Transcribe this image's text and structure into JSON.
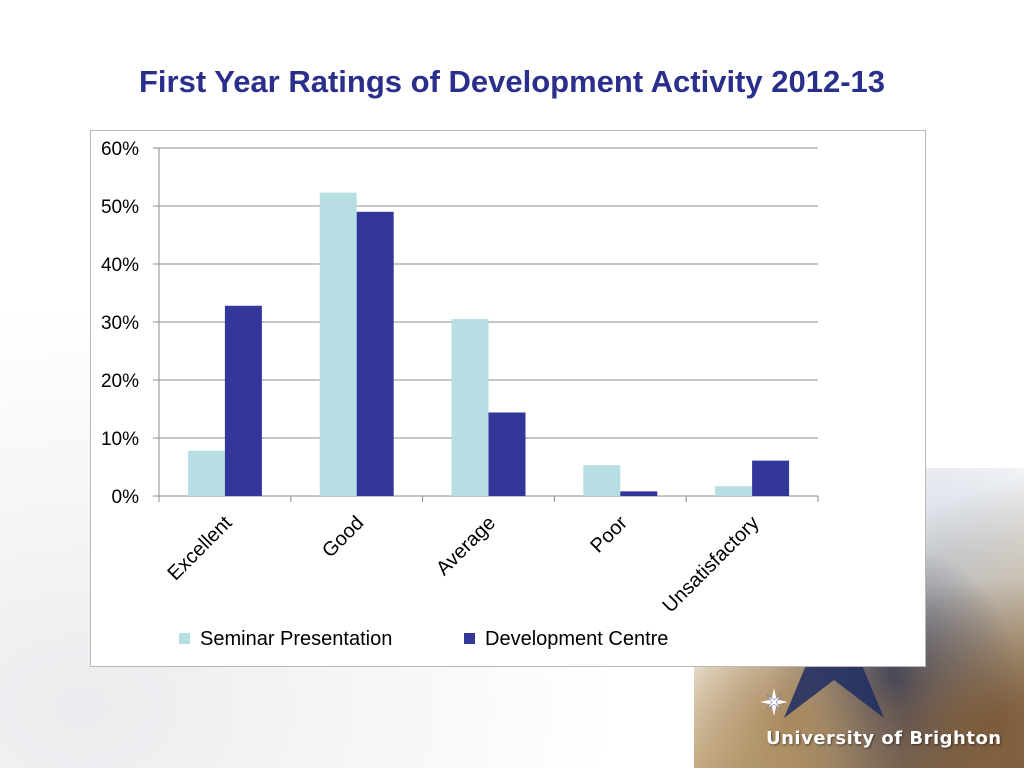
{
  "page": {
    "title": "First Year Ratings of Development Activity 2012-13"
  },
  "branding": {
    "logo_text": "University of Brighton",
    "logo_icon": "compass-star-icon"
  },
  "chart_data": {
    "type": "bar",
    "title": "",
    "xlabel": "",
    "ylabel": "",
    "categories": [
      "Excellent",
      "Good",
      "Average",
      "Poor",
      "Unsatisfactory"
    ],
    "series": [
      {
        "name": "Seminar Presentation",
        "values": [
          7.8,
          52.3,
          30.5,
          5.3,
          1.7
        ],
        "color": "#b7dfe3"
      },
      {
        "name": "Development Centre",
        "values": [
          32.8,
          49.0,
          14.4,
          0.8,
          6.1
        ],
        "color": "#34379a"
      }
    ],
    "ylim": [
      0,
      60
    ],
    "yticks": [
      0,
      10,
      20,
      30,
      40,
      50,
      60
    ],
    "ytick_labels": [
      "0%",
      "10%",
      "20%",
      "30%",
      "40%",
      "50%",
      "60%"
    ],
    "grid": true,
    "legend_position": "bottom"
  }
}
